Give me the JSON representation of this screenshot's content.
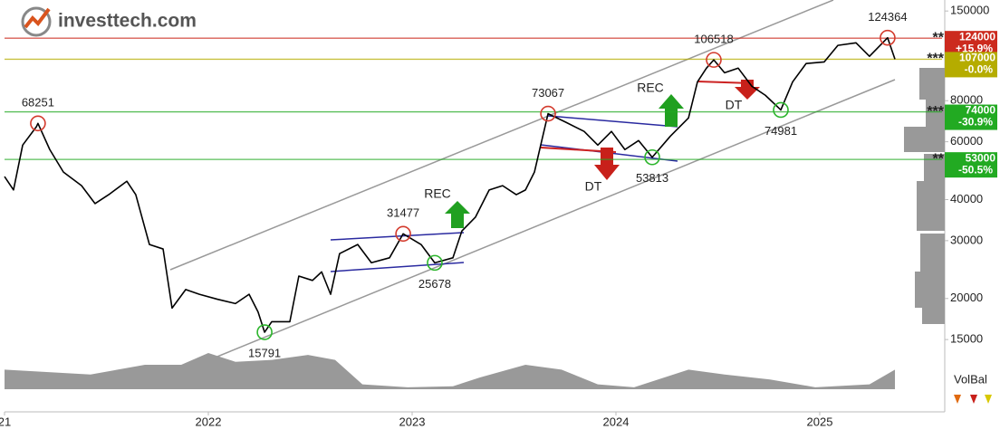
{
  "brand": "investtech.com",
  "chart_data": {
    "type": "line",
    "log_scale": true,
    "grid": false,
    "xlim": [
      2021,
      2025.6
    ],
    "xticks": [
      {
        "value": 2021,
        "label": "21"
      },
      2022,
      2023,
      2024,
      2025
    ],
    "ylim": [
      14000,
      160000
    ],
    "yticks": [
      15000,
      20000,
      30000,
      40000,
      60000,
      80000,
      150000
    ],
    "series": [
      {
        "color": "#000000",
        "x": [
          2021.0,
          2021.044,
          2021.089,
          2021.156,
          2021.164,
          2021.222,
          2021.289,
          2021.378,
          2021.444,
          2021.511,
          2021.6,
          2021.644,
          2021.711,
          2021.778,
          2021.822,
          2021.889,
          2021.956,
          2022.044,
          2022.133,
          2022.2,
          2022.244,
          2022.276,
          2022.311,
          2022.4,
          2022.444,
          2022.511,
          2022.556,
          2022.6,
          2022.644,
          2022.733,
          2022.8,
          2022.889,
          2022.956,
          2023.044,
          2023.111,
          2023.2,
          2023.244,
          2023.311,
          2023.378,
          2023.444,
          2023.511,
          2023.556,
          2023.6,
          2023.636,
          2023.667,
          2023.756,
          2023.844,
          2023.911,
          2023.978,
          2024.044,
          2024.111,
          2024.178,
          2024.267,
          2024.356,
          2024.4,
          2024.444,
          2024.48,
          2024.533,
          2024.6,
          2024.667,
          2024.733,
          2024.809,
          2024.867,
          2024.933,
          2025.022,
          2025.089,
          2025.178,
          2025.244,
          2025.333,
          2025.369
        ],
        "values": [
          47000,
          42800,
          58600,
          66600,
          68251,
          56800,
          48500,
          44100,
          38900,
          41400,
          45500,
          41400,
          29200,
          28300,
          18700,
          21300,
          20600,
          19900,
          19300,
          20600,
          18200,
          15791,
          17000,
          17000,
          23400,
          22700,
          24100,
          20600,
          27400,
          29200,
          25700,
          26600,
          31477,
          29200,
          25678,
          26600,
          32100,
          35400,
          42800,
          44100,
          41400,
          42800,
          48500,
          60500,
          73067,
          68700,
          64500,
          58600,
          64500,
          56800,
          60500,
          53813,
          62400,
          70900,
          91300,
          100500,
          106518,
          97300,
          100500,
          88500,
          83100,
          74981,
          91300,
          103800,
          105000,
          117900,
          120000,
          109200,
          124364,
          107000
        ]
      }
    ],
    "peak_color": "#d33a2c",
    "trough_color": "#2bb52b",
    "peaks": [
      {
        "x": 2021.164,
        "value": 68251
      },
      {
        "x": 2022.956,
        "value": 31477
      },
      {
        "x": 2023.667,
        "value": 73067
      },
      {
        "x": 2024.48,
        "value": 106518
      },
      {
        "x": 2025.333,
        "value": 124364
      }
    ],
    "troughs": [
      {
        "x": 2022.276,
        "value": 15791
      },
      {
        "x": 2023.111,
        "value": 25678
      },
      {
        "x": 2024.178,
        "value": 53813
      },
      {
        "x": 2024.809,
        "value": 74981
      }
    ],
    "levels": [
      {
        "value": 124000,
        "change": "+15.9%",
        "stars": "**",
        "color": "#cc2a1e"
      },
      {
        "value": 107000,
        "change": "-0.0%",
        "stars": "***",
        "color": "#b5ac00"
      },
      {
        "value": 74000,
        "change": "-30.9%",
        "stars": "***",
        "color": "#22aa22"
      },
      {
        "value": 53000,
        "change": "-50.5%",
        "stars": "**",
        "color": "#22aa22"
      }
    ],
    "signals": [
      "REC",
      "DT",
      "REC",
      "DT"
    ],
    "volume_balance": {
      "label": "VolBal",
      "color": "#999999",
      "x": [
        2021.0,
        2021.422,
        2021.689,
        2021.867,
        2022.0,
        2022.133,
        2022.311,
        2022.489,
        2022.622,
        2022.756,
        2022.978,
        2023.2,
        2023.333,
        2023.556,
        2023.733,
        2023.911,
        2024.089,
        2024.356,
        2024.533,
        2024.756,
        2024.978,
        2025.244,
        2025.369
      ],
      "values": [
        20,
        15,
        25,
        25,
        37,
        28,
        30,
        35,
        30,
        5,
        2,
        3,
        12,
        25,
        20,
        5,
        2,
        20,
        15,
        10,
        2,
        5,
        20
      ]
    }
  }
}
